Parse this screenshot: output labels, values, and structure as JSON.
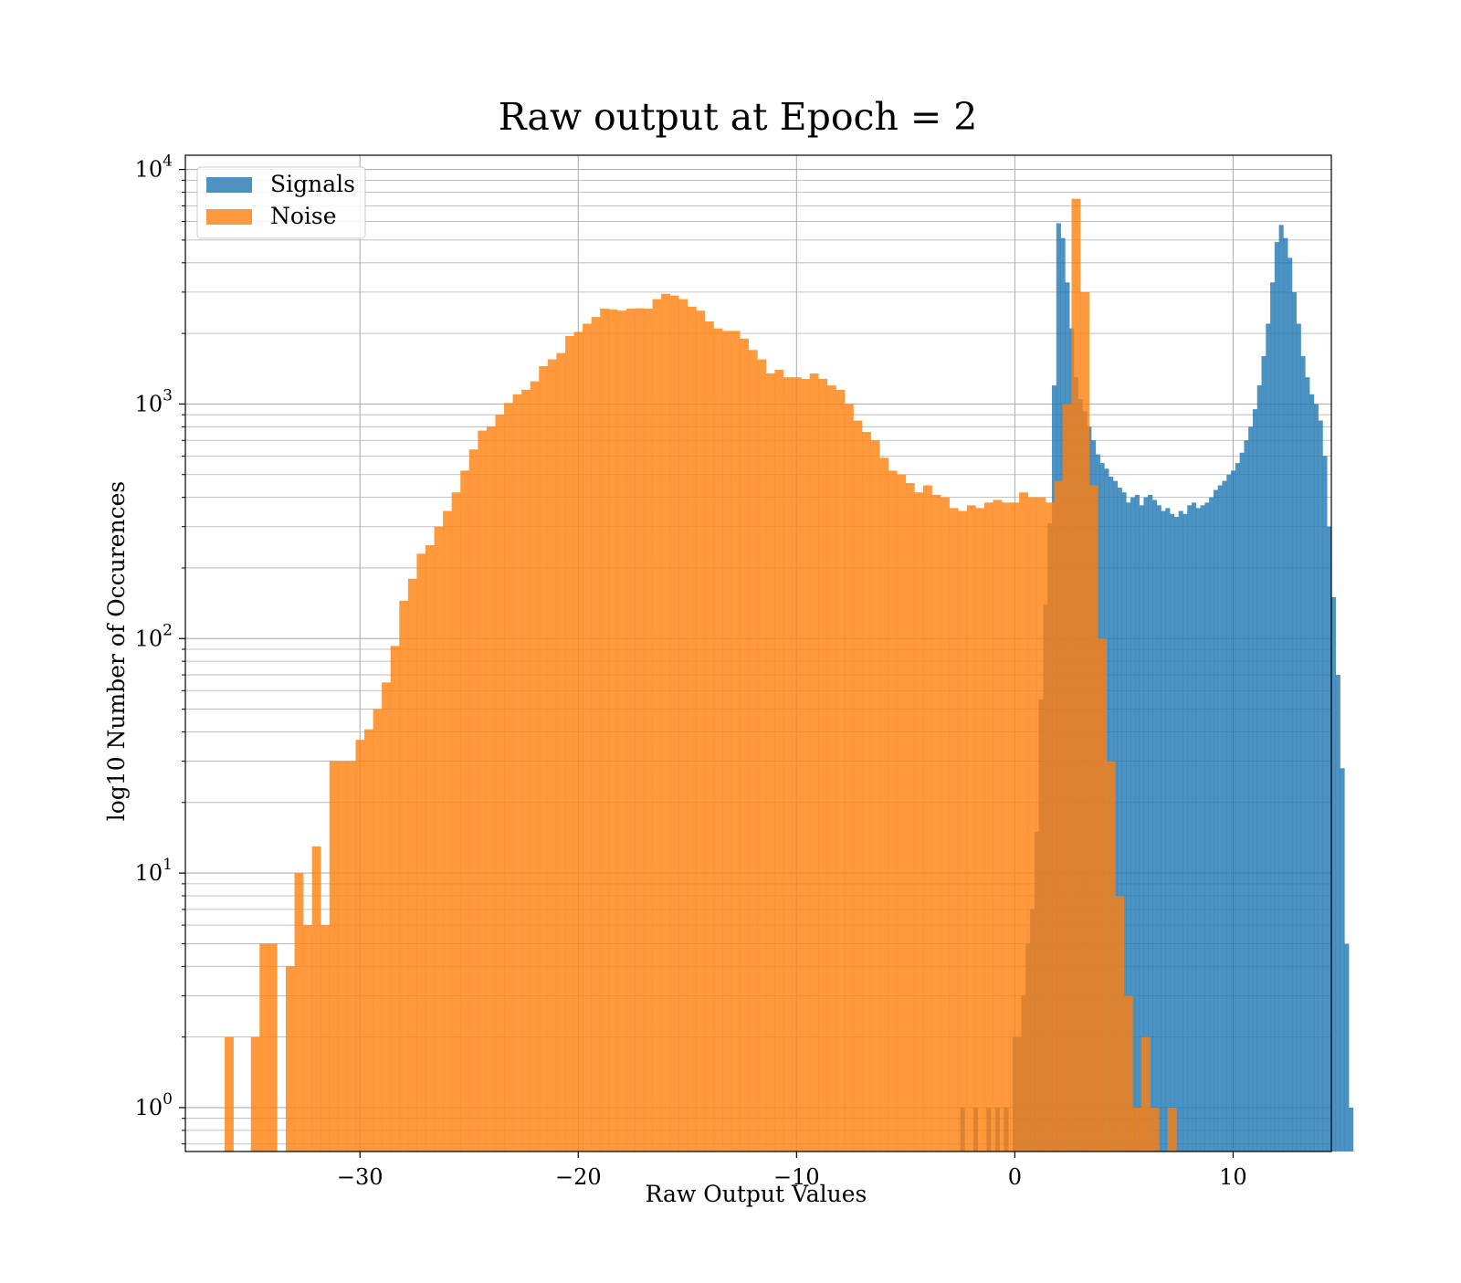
{
  "chart_data": {
    "type": "bar",
    "title": "Raw output at Epoch = 2",
    "xlabel": "Raw Output Values",
    "ylabel": "log10 Number of Occurences",
    "xlim": [
      -38,
      14.5
    ],
    "ylim": [
      0.65,
      11500
    ],
    "yscale": "log",
    "grid": true,
    "legend_position": "top-left",
    "x_ticks": [
      -30,
      -20,
      -10,
      0,
      10
    ],
    "x_tick_labels": [
      "−30",
      "−20",
      "−10",
      "0",
      "10"
    ],
    "y_ticks": [
      {
        "value": 1,
        "base": "10",
        "exp": "0"
      },
      {
        "value": 10,
        "base": "10",
        "exp": "1"
      },
      {
        "value": 100,
        "base": "10",
        "exp": "2"
      },
      {
        "value": 1000,
        "base": "10",
        "exp": "3"
      },
      {
        "value": 10000,
        "base": "10",
        "exp": "4"
      }
    ],
    "colors": {
      "signals": "#1f77b4",
      "noise": "#ff7f0e"
    },
    "series": [
      {
        "name": "Signals",
        "color": "#1f77b4",
        "opacity": 0.8,
        "bin_start": -2.5,
        "bin_width": 0.2,
        "counts": [
          1,
          0,
          0,
          1,
          0,
          0,
          1,
          0,
          1,
          0,
          1,
          0,
          2,
          2,
          3,
          5,
          7,
          15,
          55,
          140,
          310,
          1200,
          5900,
          5100,
          3300,
          2100,
          1300,
          1050,
          930,
          800,
          700,
          610,
          560,
          530,
          490,
          470,
          440,
          420,
          380,
          400,
          410,
          370,
          400,
          410,
          390,
          370,
          350,
          360,
          340,
          330,
          350,
          340,
          370,
          380,
          360,
          370,
          380,
          400,
          430,
          450,
          470,
          500,
          520,
          560,
          620,
          700,
          800,
          950,
          1200,
          1600,
          2200,
          3300,
          4900,
          5800,
          5100,
          4200,
          3000,
          2200,
          1600,
          1300,
          1100,
          1000,
          850,
          600,
          300,
          150,
          70,
          28,
          5,
          1
        ]
      },
      {
        "name": "Noise",
        "color": "#ff7f0e",
        "opacity": 0.8,
        "bin_start": -36.2,
        "bin_width": 0.4,
        "counts": [
          2,
          0,
          0,
          2,
          5,
          5,
          0,
          4,
          10,
          6,
          13,
          6,
          30,
          30,
          30,
          37,
          41,
          50,
          65,
          93,
          145,
          180,
          230,
          250,
          300,
          350,
          420,
          520,
          640,
          770,
          800,
          900,
          1010,
          1100,
          1150,
          1250,
          1450,
          1550,
          1650,
          1950,
          2030,
          2200,
          2350,
          2550,
          2530,
          2500,
          2550,
          2560,
          2550,
          2800,
          2950,
          2900,
          2800,
          2600,
          2500,
          2250,
          2100,
          2050,
          2050,
          1900,
          1700,
          1550,
          1350,
          1400,
          1300,
          1300,
          1280,
          1350,
          1280,
          1200,
          1150,
          1000,
          850,
          760,
          700,
          590,
          520,
          500,
          460,
          420,
          450,
          410,
          400,
          360,
          350,
          370,
          360,
          380,
          390,
          380,
          380,
          420,
          400,
          400,
          380,
          470,
          1000,
          7500,
          3000,
          450,
          100,
          30,
          8,
          3,
          1,
          2,
          1,
          0,
          1
        ]
      }
    ]
  }
}
